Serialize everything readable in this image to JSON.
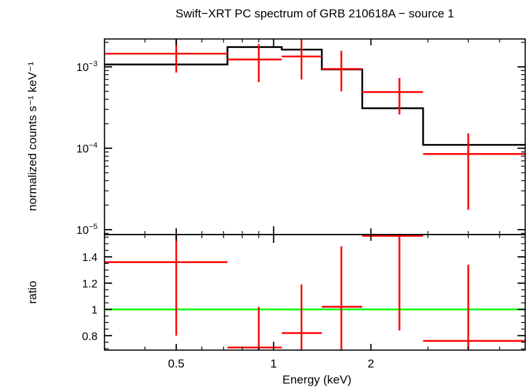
{
  "chart_data": {
    "type": "line",
    "title": "Swift−XRT PC spectrum of GRB 210618A − source 1",
    "xlabel": "Energy (keV)",
    "x_scale": "log",
    "xlim": [
      0.3,
      6.0
    ],
    "x_ticks": [
      {
        "value": 0.5,
        "label": "0.5"
      },
      {
        "value": 1,
        "label": "1"
      },
      {
        "value": 2,
        "label": "2"
      }
    ],
    "panels": [
      {
        "id": "spectrum",
        "ylabel": "normalized counts s⁻¹ keV⁻¹",
        "y_scale": "log",
        "ylim": [
          8.7e-06,
          0.0022
        ],
        "y_ticks": [
          {
            "value": 0.001,
            "base": "10",
            "exp": "−3"
          },
          {
            "value": 0.0001,
            "base": "10",
            "exp": "−4"
          },
          {
            "value": 1e-05,
            "base": "10",
            "exp": "−5"
          }
        ],
        "series": [
          {
            "kind": "model",
            "color": "#000000",
            "bins": [
              {
                "xlo": 0.3,
                "xhi": 0.72,
                "y": 0.00107
              },
              {
                "xlo": 0.72,
                "xhi": 1.06,
                "y": 0.00175
              },
              {
                "xlo": 1.06,
                "xhi": 1.41,
                "y": 0.00163
              },
              {
                "xlo": 1.41,
                "xhi": 1.88,
                "y": 0.00093
              },
              {
                "xlo": 1.88,
                "xhi": 2.9,
                "y": 0.00031
              },
              {
                "xlo": 2.9,
                "xhi": 6.0,
                "y": 0.00011
              }
            ]
          },
          {
            "kind": "data",
            "color": "#ff0000",
            "points": [
              {
                "x": 0.5,
                "xlo": 0.3,
                "xhi": 0.72,
                "y": 0.00145,
                "ylo": 0.00085,
                "yhi": 0.0022
              },
              {
                "x": 0.9,
                "xlo": 0.72,
                "xhi": 1.06,
                "y": 0.00123,
                "ylo": 0.00065,
                "yhi": 0.0019
              },
              {
                "x": 1.22,
                "xlo": 1.06,
                "xhi": 1.41,
                "y": 0.00134,
                "ylo": 0.0007,
                "yhi": 0.0022
              },
              {
                "x": 1.62,
                "xlo": 1.41,
                "xhi": 1.88,
                "y": 0.00094,
                "ylo": 0.0005,
                "yhi": 0.00158
              },
              {
                "x": 2.45,
                "xlo": 1.88,
                "xhi": 2.9,
                "y": 0.00049,
                "ylo": 0.00026,
                "yhi": 0.00073
              },
              {
                "x": 4.0,
                "xlo": 2.9,
                "xhi": 6.0,
                "y": 8.5e-05,
                "ylo": 1.75e-05,
                "yhi": 0.000152
              }
            ]
          }
        ]
      },
      {
        "id": "ratio",
        "ylabel": "ratio",
        "y_scale": "linear",
        "ylim": [
          0.69,
          1.57
        ],
        "y_ticks": [
          {
            "value": 0.8,
            "label": "0.8"
          },
          {
            "value": 1.0,
            "label": "1"
          },
          {
            "value": 1.2,
            "label": "1.2"
          },
          {
            "value": 1.4,
            "label": "1.4"
          }
        ],
        "reference_line": {
          "y": 1.0,
          "color": "#00ff00"
        },
        "series": [
          {
            "kind": "data",
            "color": "#ff0000",
            "points": [
              {
                "x": 0.5,
                "xlo": 0.3,
                "xhi": 0.72,
                "y": 1.36,
                "ylo": 0.8,
                "yhi": 1.57
              },
              {
                "x": 0.9,
                "xlo": 0.72,
                "xhi": 1.06,
                "y": 0.71,
                "ylo": 0.69,
                "yhi": 1.02
              },
              {
                "x": 1.22,
                "xlo": 1.06,
                "xhi": 1.41,
                "y": 0.82,
                "ylo": 0.69,
                "yhi": 1.19
              },
              {
                "x": 1.62,
                "xlo": 1.41,
                "xhi": 1.88,
                "y": 1.02,
                "ylo": 0.69,
                "yhi": 1.48
              },
              {
                "x": 2.45,
                "xlo": 1.88,
                "xhi": 2.9,
                "y": 1.56,
                "ylo": 0.84,
                "yhi": 1.57
              },
              {
                "x": 4.0,
                "xlo": 2.9,
                "xhi": 6.0,
                "y": 0.76,
                "ylo": 0.69,
                "yhi": 1.34
              }
            ]
          }
        ]
      }
    ]
  }
}
